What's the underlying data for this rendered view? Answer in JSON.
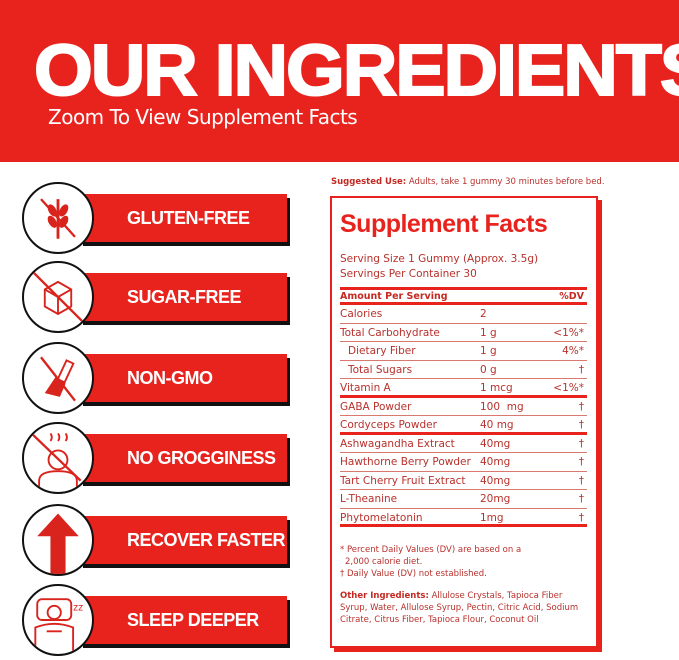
{
  "header": {
    "title": "OUR INGREDIENTS",
    "subtitle": "Zoom To View Supplement Facts"
  },
  "colors": {
    "brand_red": "#e8231e",
    "shadow": "#111111"
  },
  "badges": [
    {
      "label": "GLUTEN-FREE",
      "icon": "no-wheat-icon"
    },
    {
      "label": "SUGAR-FREE",
      "icon": "no-sugar-cube-icon"
    },
    {
      "label": "NON-GMO",
      "icon": "no-gmo-flask-icon"
    },
    {
      "label": "NO GROGGINESS",
      "icon": "no-grogginess-icon"
    },
    {
      "label": "RECOVER FASTER",
      "icon": "up-arrow-icon"
    },
    {
      "label": "SLEEP DEEPER",
      "icon": "sleeping-person-icon"
    }
  ],
  "suggested_use": {
    "label": "Suggested Use:",
    "text": "Adults, take 1 gummy 30 minutes before bed."
  },
  "facts": {
    "title": "Supplement Facts",
    "serving_size": "Serving Size 1 Gummy (Approx. 3.5g)",
    "servings_per_container": "Servings Per Container 30",
    "header": {
      "name": "Amount Per Serving",
      "dv": "%DV"
    },
    "rows": [
      {
        "name": "Calories",
        "amount": "2",
        "dv": ""
      },
      {
        "name": "Total Carbohydrate",
        "amount": "1 g",
        "dv": "<1%*"
      },
      {
        "name": "Dietary Fiber",
        "amount": "1 g",
        "dv": "4%*"
      },
      {
        "name": "Total Sugars",
        "amount": "0 g",
        "dv": "†"
      },
      {
        "name": "Vitamin A",
        "amount": "1 mcg",
        "dv": "<1%*"
      },
      {
        "name": "GABA Powder",
        "amount": "100  mg",
        "dv": "†"
      },
      {
        "name": "Cordyceps Powder",
        "amount": "40 mg",
        "dv": "†"
      },
      {
        "name": "Ashwagandha Extract",
        "amount": "40mg",
        "dv": "†"
      },
      {
        "name": "Hawthorne Berry Powder",
        "amount": "40mg",
        "dv": "†"
      },
      {
        "name": "Tart Cherry Fruit Extract",
        "amount": "40mg",
        "dv": "†"
      },
      {
        "name": "L-Theanine",
        "amount": "20mg",
        "dv": "†"
      },
      {
        "name": "Phytomelatonin",
        "amount": "1mg",
        "dv": "†"
      }
    ],
    "note1": "* Percent Daily Values (DV) are based on a",
    "note1b": "2,000 calorie diet.",
    "note2": "† Daily Value (DV) not established.",
    "other_label": "Other Ingredients:",
    "other_text": "Allulose Crystals, Tapioca Fiber Syrup, Water, Allulose Syrup, Pectin, Citric Acid, Sodium Citrate, Citrus Fiber, Tapioca Flour, Coconut Oil"
  }
}
